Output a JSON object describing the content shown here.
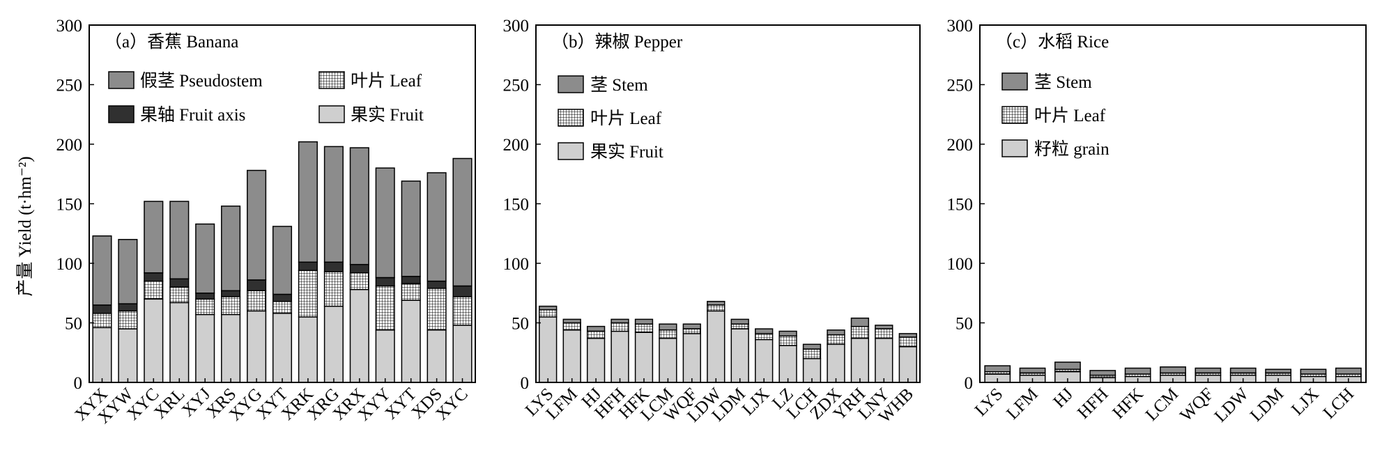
{
  "ylabel": "产量 Yield (t·hm⁻²)",
  "colors": {
    "stem": "#8c8c8c",
    "fruit_axis": "#303030",
    "leaf_bg": "#ffffff",
    "leaf_grid": "#000000",
    "fruit": "#cfcfcf"
  },
  "chart_data": [
    {
      "type": "bar",
      "stacked": true,
      "title": "（a）香蕉 Banana",
      "ylim": [
        0,
        300
      ],
      "yticks": [
        "0",
        "50",
        "100",
        "150",
        "200",
        "250",
        "300"
      ],
      "legend": [
        "假茎 Pseudostem",
        "叶片 Leaf",
        "果轴 Fruit axis",
        "果实 Fruit"
      ],
      "legend_placement": "top-left",
      "categories": [
        "XYX",
        "XYW",
        "XYC",
        "XRL",
        "XYJ",
        "XRS",
        "XYG",
        "XYT",
        "XRK",
        "XRG",
        "XRX",
        "XYY",
        "XYT",
        "XDS",
        "XYC"
      ],
      "series": [
        {
          "name": "果实 Fruit",
          "key": "fruit",
          "values": [
            46,
            45,
            70,
            67,
            57,
            57,
            60,
            58,
            55,
            64,
            78,
            44,
            69,
            44,
            48
          ]
        },
        {
          "name": "叶片 Leaf",
          "key": "leaf",
          "values": [
            12,
            15,
            15,
            13,
            13,
            15,
            17,
            10,
            39,
            29,
            14,
            37,
            14,
            35,
            24
          ]
        },
        {
          "name": "果轴 Fruit axis",
          "key": "fruit_axis",
          "values": [
            7,
            6,
            7,
            7,
            5,
            5,
            9,
            6,
            7,
            8,
            7,
            7,
            6,
            6,
            9
          ]
        },
        {
          "name": "假茎 Pseudostem",
          "key": "stem",
          "values": [
            58,
            54,
            60,
            65,
            58,
            71,
            92,
            57,
            101,
            97,
            98,
            92,
            80,
            91,
            107
          ]
        }
      ]
    },
    {
      "type": "bar",
      "stacked": true,
      "title": "（b）辣椒 Pepper",
      "ylim": [
        0,
        300
      ],
      "yticks": [
        "0",
        "50",
        "100",
        "150",
        "200",
        "250",
        "300"
      ],
      "legend": [
        "茎 Stem",
        "叶片 Leaf",
        "果实 Fruit"
      ],
      "legend_placement": "top-left",
      "categories": [
        "LYS",
        "LFM",
        "HJ",
        "HFH",
        "HFK",
        "LCM",
        "WQF",
        "LDW",
        "LDM",
        "LJX",
        "LZ",
        "LCH",
        "ZDX",
        "YRH",
        "LNY",
        "WHB"
      ],
      "series": [
        {
          "name": "果实 Fruit",
          "key": "fruit",
          "values": [
            55,
            44,
            37,
            43,
            42,
            37,
            41,
            60,
            45,
            36,
            31,
            20,
            32,
            37,
            37,
            30
          ]
        },
        {
          "name": "叶片 Leaf",
          "key": "leaf",
          "values": [
            6,
            6,
            6,
            7,
            7,
            7,
            4,
            5,
            4,
            5,
            8,
            8,
            8,
            10,
            8,
            8
          ]
        },
        {
          "name": "茎 Stem",
          "key": "stem",
          "values": [
            3,
            3,
            4,
            3,
            4,
            5,
            4,
            3,
            4,
            4,
            4,
            4,
            4,
            7,
            3,
            3
          ]
        }
      ]
    },
    {
      "type": "bar",
      "stacked": true,
      "title": "（c）水稻 Rice",
      "ylim": [
        0,
        300
      ],
      "yticks": [
        "0",
        "50",
        "100",
        "150",
        "200",
        "250",
        "300"
      ],
      "legend": [
        "茎 Stem",
        "叶片 Leaf",
        "籽粒 grain"
      ],
      "legend_placement": "top-left",
      "categories": [
        "LYS",
        "LFM",
        "HJ",
        "HFH",
        "HFK",
        "LCM",
        "WQF",
        "LDW",
        "LDM",
        "LJX",
        "LCH"
      ],
      "series": [
        {
          "name": "籽粒 grain",
          "key": "fruit",
          "values": [
            7,
            6,
            9,
            4,
            5,
            6,
            6,
            6,
            6,
            5,
            5
          ]
        },
        {
          "name": "叶片 Leaf",
          "key": "leaf",
          "values": [
            2,
            2,
            2,
            2,
            2,
            2,
            2,
            2,
            2,
            2,
            2
          ]
        },
        {
          "name": "茎 Stem",
          "key": "stem",
          "values": [
            5,
            4,
            6,
            4,
            5,
            5,
            4,
            4,
            3,
            4,
            5
          ]
        }
      ]
    }
  ]
}
